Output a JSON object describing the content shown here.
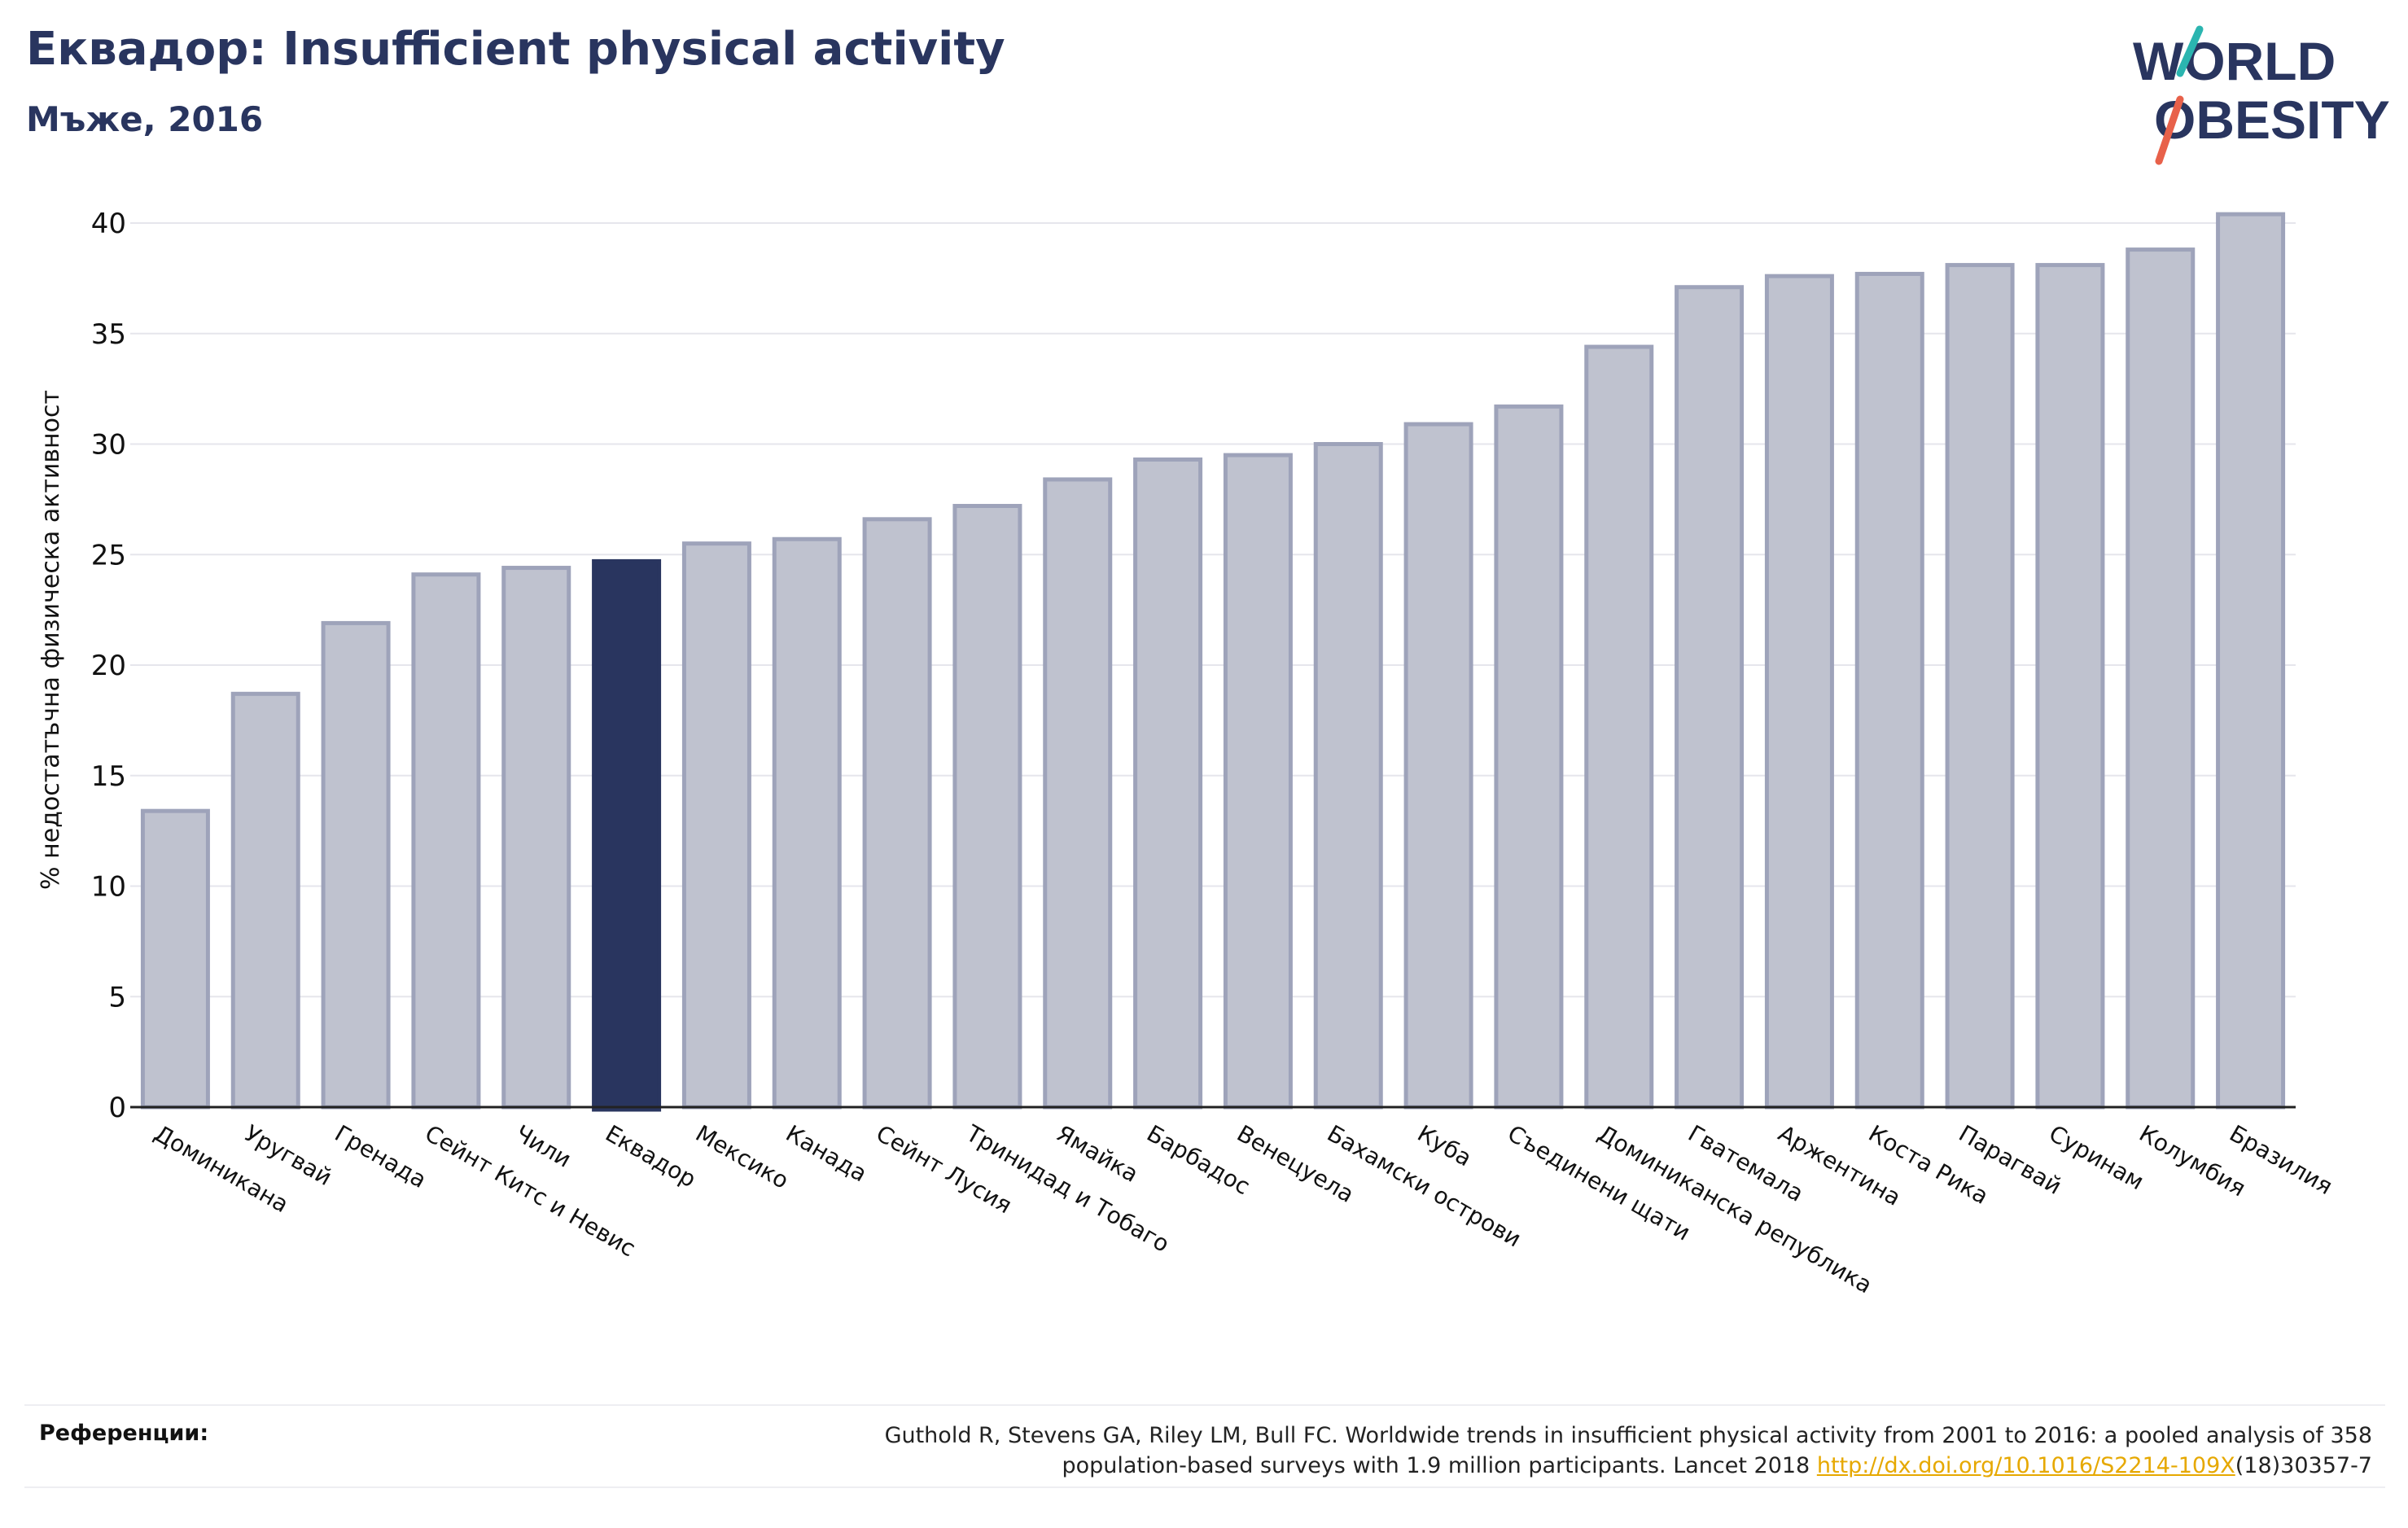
{
  "header": {
    "title": "Еквадор: Insufficient physical activity",
    "subtitle": "Мъже, 2016"
  },
  "logo": {
    "line1": "WORLD",
    "line2": "OBESITY"
  },
  "chart_data": {
    "type": "bar",
    "ylabel": "% недостатъчна физическа активност",
    "ylim": [
      0,
      42
    ],
    "yticks": [
      0,
      5,
      10,
      15,
      20,
      25,
      30,
      35,
      40
    ],
    "grid": true,
    "highlight": "Еквадор",
    "colors": {
      "bar": "#bfc2cf",
      "bar_edge": "#9ea3ba",
      "highlight": "#29355f"
    },
    "categories": [
      "Доминикана",
      "Уругвай",
      "Гренада",
      "Сейнт Китс и Невис",
      "Чили",
      "Еквадор",
      "Мексико",
      "Канада",
      "Сейнт Лусия",
      "Тринидад и Тобаго",
      "Ямайка",
      "Барбадос",
      "Венецуела",
      "Бахамски острови",
      "Куба",
      "Съединени щати",
      "Доминиканска република",
      "Гватемала",
      "Аржентина",
      "Коста Рика",
      "Парагвай",
      "Суринам",
      "Колумбия",
      "Бразилия"
    ],
    "values": [
      13.4,
      18.7,
      21.9,
      24.1,
      24.4,
      24.7,
      25.5,
      25.7,
      26.6,
      27.2,
      28.4,
      29.3,
      29.5,
      30.0,
      30.9,
      31.7,
      34.4,
      37.1,
      37.6,
      37.7,
      38.1,
      38.1,
      38.8,
      40.4
    ]
  },
  "footer": {
    "ref_label": "Референции:",
    "ref_line1": "Guthold R, Stevens GA, Riley LM, Bull FC. Worldwide trends in insufficient physical activity from 2001 to 2016: a pooled analysis of 358",
    "ref_line2_pre": "population-based surveys with 1.9 million participants. Lancet 2018 ",
    "ref_link": "http://dx.doi.org/10.1016/S2214-109X",
    "ref_line2_post": "(18)30357-7"
  }
}
